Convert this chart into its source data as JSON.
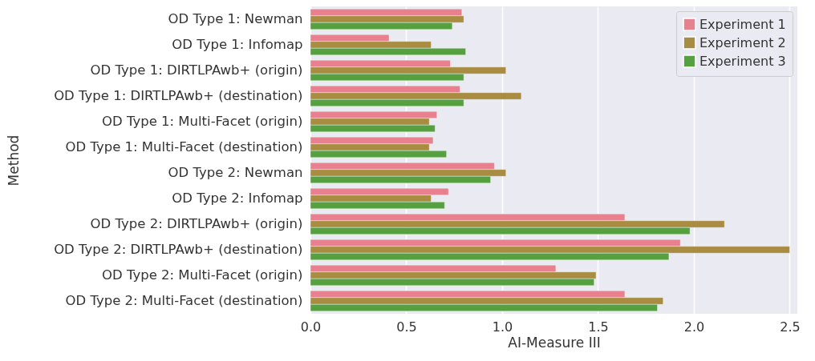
{
  "chart_data": {
    "type": "bar",
    "orientation": "horizontal",
    "xlabel": "AI-Measure III",
    "ylabel": "Method",
    "categories": [
      "OD Type 1: Newman",
      "OD Type 1: Infomap",
      "OD Type 1: DIRTLPAwb+ (origin)",
      "OD Type 1: DIRTLPAwb+ (destination)",
      "OD Type 1: Multi-Facet  (origin)",
      "OD Type 1: Multi-Facet  (destination)",
      "OD Type 2: Newman",
      "OD Type 2: Infomap",
      "OD Type 2: DIRTLPAwb+ (origin)",
      "OD Type 2: DIRTLPAwb+ (destination)",
      "OD Type 2: Multi-Facet  (origin)",
      "OD Type 2: Multi-Facet  (destination)"
    ],
    "series": [
      {
        "name": "Experiment 1",
        "color": "#e8818f",
        "values": [
          0.79,
          0.41,
          0.73,
          0.78,
          0.66,
          0.64,
          0.96,
          0.72,
          1.64,
          1.93,
          1.28,
          1.64
        ]
      },
      {
        "name": "Experiment 2",
        "color": "#a88c42",
        "values": [
          0.8,
          0.63,
          1.02,
          1.1,
          0.62,
          0.62,
          1.02,
          0.63,
          2.16,
          2.5,
          1.49,
          1.84
        ]
      },
      {
        "name": "Experiment 3",
        "color": "#55a13f",
        "values": [
          0.74,
          0.81,
          0.8,
          0.8,
          0.65,
          0.71,
          0.94,
          0.7,
          1.98,
          1.87,
          1.48,
          1.81
        ]
      }
    ],
    "xlim": [
      0,
      2.54
    ],
    "xticks": [
      {
        "value": 0,
        "label": "0.0"
      },
      0.5,
      {
        "value": 1,
        "label": "1.0"
      },
      1.5,
      {
        "value": 2,
        "label": "2.0"
      },
      2.5
    ],
    "grid": "x",
    "legend": "top right"
  }
}
